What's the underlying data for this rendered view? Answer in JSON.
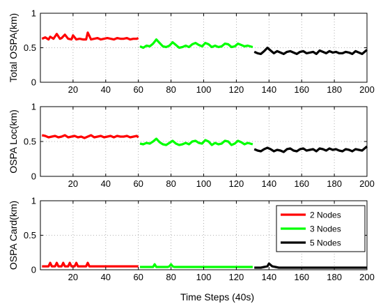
{
  "figure": {
    "xlabel": "Time Steps (40s)"
  },
  "colors": {
    "2 Nodes": "#ff0000",
    "3 Nodes": "#00ff00",
    "5 Nodes": "#000000"
  },
  "legend": {
    "placement": "top-right of bottom panel",
    "entries": [
      "2 Nodes",
      "3 Nodes",
      "5 Nodes"
    ]
  },
  "chart_data": [
    {
      "type": "line",
      "ylabel": "Total OSPA(km)",
      "xlim": [
        0,
        200
      ],
      "ylim": [
        0,
        1
      ],
      "xticks": [
        20,
        40,
        60,
        80,
        100,
        120,
        140,
        160,
        180,
        200
      ],
      "yticks": [
        0,
        0.5,
        1
      ],
      "grid": true,
      "series": [
        {
          "name": "2 Nodes",
          "x": [
            1,
            3,
            5,
            6,
            8,
            10,
            12,
            13,
            15,
            17,
            19,
            20,
            22,
            24,
            26,
            28,
            29,
            31,
            33,
            35,
            37,
            39,
            41,
            43,
            45,
            47,
            49,
            51,
            53,
            55,
            57,
            59,
            60
          ],
          "y": [
            0.63,
            0.65,
            0.62,
            0.66,
            0.63,
            0.7,
            0.63,
            0.64,
            0.69,
            0.63,
            0.62,
            0.68,
            0.62,
            0.63,
            0.62,
            0.62,
            0.72,
            0.62,
            0.63,
            0.64,
            0.62,
            0.63,
            0.64,
            0.63,
            0.62,
            0.64,
            0.63,
            0.63,
            0.64,
            0.62,
            0.63,
            0.63,
            0.64
          ]
        },
        {
          "name": "3 Nodes",
          "x": [
            61,
            63,
            65,
            67,
            69,
            71,
            73,
            75,
            77,
            79,
            81,
            83,
            85,
            87,
            89,
            91,
            93,
            95,
            97,
            99,
            101,
            103,
            105,
            107,
            109,
            111,
            113,
            115,
            117,
            119,
            121,
            123,
            125,
            127,
            130
          ],
          "y": [
            0.52,
            0.5,
            0.53,
            0.52,
            0.56,
            0.62,
            0.57,
            0.52,
            0.51,
            0.53,
            0.58,
            0.54,
            0.5,
            0.51,
            0.53,
            0.51,
            0.55,
            0.57,
            0.54,
            0.52,
            0.57,
            0.55,
            0.51,
            0.53,
            0.51,
            0.52,
            0.56,
            0.55,
            0.51,
            0.52,
            0.56,
            0.54,
            0.52,
            0.53,
            0.51
          ]
        },
        {
          "name": "5 Nodes",
          "x": [
            131,
            133,
            135,
            137,
            139,
            141,
            143,
            145,
            147,
            149,
            151,
            153,
            155,
            157,
            159,
            161,
            163,
            165,
            167,
            169,
            171,
            173,
            175,
            177,
            179,
            181,
            183,
            185,
            187,
            189,
            191,
            193,
            195,
            197,
            200
          ],
          "y": [
            0.44,
            0.42,
            0.41,
            0.45,
            0.5,
            0.46,
            0.42,
            0.45,
            0.43,
            0.41,
            0.44,
            0.45,
            0.43,
            0.41,
            0.44,
            0.45,
            0.42,
            0.43,
            0.44,
            0.41,
            0.46,
            0.44,
            0.42,
            0.45,
            0.43,
            0.44,
            0.42,
            0.42,
            0.44,
            0.43,
            0.41,
            0.45,
            0.43,
            0.41,
            0.47
          ]
        }
      ]
    },
    {
      "type": "line",
      "ylabel": "OSPA Loc(km)",
      "xlim": [
        0,
        200
      ],
      "ylim": [
        0,
        1
      ],
      "xticks": [
        20,
        40,
        60,
        80,
        100,
        120,
        140,
        160,
        180,
        200
      ],
      "yticks": [
        0,
        0.5,
        1
      ],
      "grid": true,
      "series": [
        {
          "name": "2 Nodes",
          "x": [
            1,
            3,
            5,
            7,
            9,
            11,
            13,
            15,
            17,
            19,
            21,
            23,
            25,
            27,
            29,
            31,
            33,
            35,
            37,
            39,
            41,
            43,
            45,
            47,
            49,
            51,
            53,
            55,
            57,
            59,
            60
          ],
          "y": [
            0.59,
            0.58,
            0.56,
            0.57,
            0.58,
            0.56,
            0.57,
            0.59,
            0.56,
            0.57,
            0.58,
            0.56,
            0.57,
            0.55,
            0.57,
            0.59,
            0.56,
            0.57,
            0.58,
            0.56,
            0.57,
            0.58,
            0.56,
            0.58,
            0.57,
            0.57,
            0.58,
            0.56,
            0.57,
            0.58,
            0.56
          ]
        },
        {
          "name": "3 Nodes",
          "x": [
            61,
            63,
            65,
            67,
            69,
            71,
            73,
            75,
            77,
            79,
            81,
            83,
            85,
            87,
            89,
            91,
            93,
            95,
            97,
            99,
            101,
            103,
            105,
            107,
            109,
            111,
            113,
            115,
            117,
            119,
            121,
            123,
            125,
            127,
            130
          ],
          "y": [
            0.47,
            0.46,
            0.48,
            0.47,
            0.5,
            0.54,
            0.49,
            0.46,
            0.45,
            0.48,
            0.51,
            0.47,
            0.45,
            0.46,
            0.48,
            0.46,
            0.5,
            0.51,
            0.48,
            0.47,
            0.52,
            0.5,
            0.45,
            0.48,
            0.46,
            0.47,
            0.51,
            0.5,
            0.45,
            0.47,
            0.51,
            0.49,
            0.46,
            0.48,
            0.46
          ]
        },
        {
          "name": "5 Nodes",
          "x": [
            131,
            133,
            135,
            137,
            139,
            141,
            143,
            145,
            147,
            149,
            151,
            153,
            155,
            157,
            159,
            161,
            163,
            165,
            167,
            169,
            171,
            173,
            175,
            177,
            179,
            181,
            183,
            185,
            187,
            189,
            191,
            193,
            195,
            197,
            200
          ],
          "y": [
            0.39,
            0.37,
            0.36,
            0.39,
            0.41,
            0.39,
            0.36,
            0.38,
            0.37,
            0.35,
            0.39,
            0.4,
            0.37,
            0.36,
            0.39,
            0.4,
            0.37,
            0.38,
            0.39,
            0.36,
            0.4,
            0.39,
            0.37,
            0.4,
            0.38,
            0.39,
            0.37,
            0.36,
            0.39,
            0.38,
            0.36,
            0.39,
            0.38,
            0.37,
            0.43
          ]
        }
      ]
    },
    {
      "type": "line",
      "ylabel": "OSPA Card(km)",
      "xlim": [
        0,
        200
      ],
      "ylim": [
        0,
        1
      ],
      "xticks": [
        20,
        40,
        60,
        80,
        100,
        120,
        140,
        160,
        180,
        200
      ],
      "yticks": [
        0,
        0.5,
        1
      ],
      "grid": true,
      "series": [
        {
          "name": "2 Nodes",
          "x": [
            1,
            3,
            5,
            6,
            7,
            9,
            10,
            11,
            13,
            14,
            15,
            17,
            18,
            19,
            21,
            22,
            23,
            25,
            27,
            28,
            29,
            30,
            31,
            33,
            35,
            40,
            45,
            50,
            55,
            60
          ],
          "y": [
            0.05,
            0.05,
            0.05,
            0.1,
            0.05,
            0.05,
            0.1,
            0.05,
            0.05,
            0.1,
            0.05,
            0.05,
            0.1,
            0.05,
            0.05,
            0.1,
            0.05,
            0.05,
            0.05,
            0.05,
            0.1,
            0.05,
            0.05,
            0.05,
            0.05,
            0.05,
            0.05,
            0.05,
            0.05,
            0.05
          ]
        },
        {
          "name": "3 Nodes",
          "x": [
            61,
            65,
            69,
            70,
            71,
            73,
            78,
            79,
            80,
            81,
            82,
            85,
            90,
            100,
            110,
            120,
            130
          ],
          "y": [
            0.04,
            0.04,
            0.04,
            0.08,
            0.04,
            0.04,
            0.04,
            0.05,
            0.08,
            0.05,
            0.04,
            0.04,
            0.04,
            0.04,
            0.04,
            0.04,
            0.04
          ]
        },
        {
          "name": "5 Nodes",
          "x": [
            131,
            135,
            137,
            139,
            140,
            141,
            142,
            144,
            146,
            150,
            160,
            170,
            180,
            190,
            200
          ],
          "y": [
            0.03,
            0.03,
            0.04,
            0.05,
            0.09,
            0.07,
            0.05,
            0.04,
            0.03,
            0.03,
            0.03,
            0.03,
            0.03,
            0.03,
            0.03
          ]
        }
      ]
    }
  ]
}
